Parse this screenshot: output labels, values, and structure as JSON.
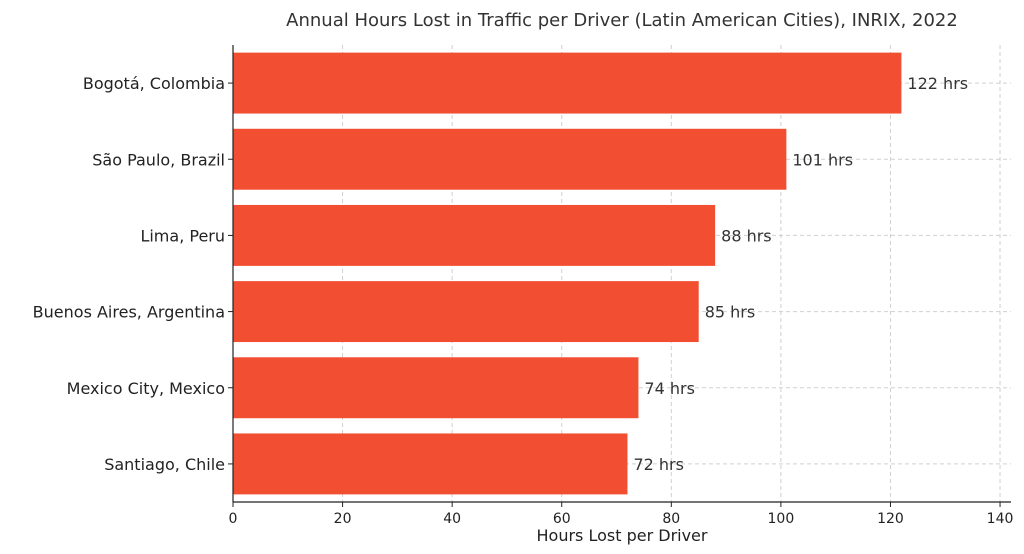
{
  "chart_data": {
    "type": "bar",
    "orientation": "horizontal",
    "title": "Annual Hours Lost in Traffic per Driver (Latin American Cities), INRIX, 2022",
    "xlabel": "Hours Lost per Driver",
    "ylabel": "",
    "categories": [
      "Bogotá, Colombia",
      "São Paulo, Brazil",
      "Lima, Peru",
      "Buenos Aires, Argentina",
      "Mexico City, Mexico",
      "Santiago, Chile"
    ],
    "values": [
      122,
      101,
      88,
      85,
      74,
      72
    ],
    "data_labels": [
      "122 hrs",
      "101 hrs",
      "88 hrs",
      "85 hrs",
      "74 hrs",
      "72 hrs"
    ],
    "xlim": [
      0,
      142
    ],
    "xticks": [
      0,
      20,
      40,
      60,
      80,
      100,
      120,
      140
    ],
    "grid": true,
    "bar_color": "#f24e31"
  }
}
